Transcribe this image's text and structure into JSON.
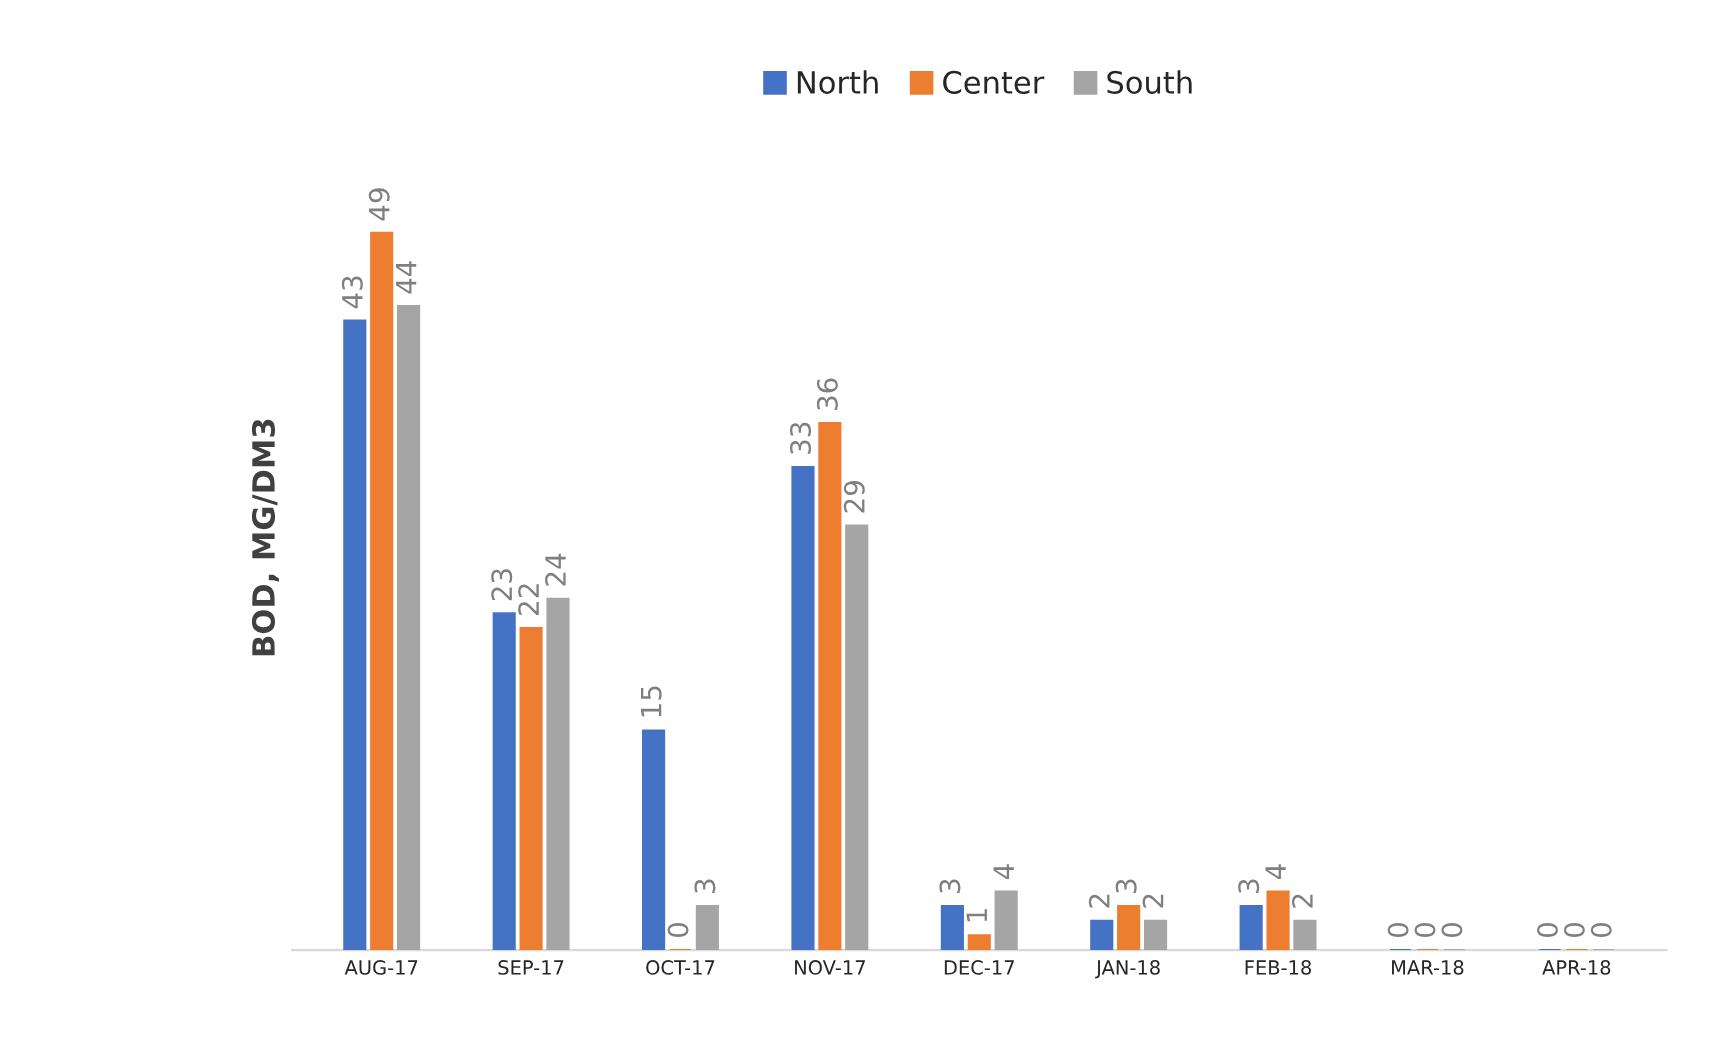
{
  "chart_data": {
    "type": "bar",
    "ylabel": "BOD, MG/DM3",
    "categories": [
      "AUG-17",
      "SEP-17",
      "OCT-17",
      "NOV-17",
      "DEC-17",
      "JAN-18",
      "FEB-18",
      "MAR-18",
      "APR-18"
    ],
    "series": [
      {
        "name": "North",
        "color": "#4472c4",
        "values": [
          43,
          23,
          15,
          33,
          3,
          2,
          3,
          0,
          0
        ]
      },
      {
        "name": "Center",
        "color": "#ed7d31",
        "values": [
          49,
          22,
          0,
          36,
          1,
          3,
          4,
          0,
          0
        ]
      },
      {
        "name": "South",
        "color": "#a5a5a5",
        "values": [
          44,
          24,
          3,
          29,
          4,
          2,
          2,
          0,
          0
        ]
      }
    ],
    "data_labels": true,
    "legend": "top",
    "grid": false,
    "tick_labels": "x"
  }
}
